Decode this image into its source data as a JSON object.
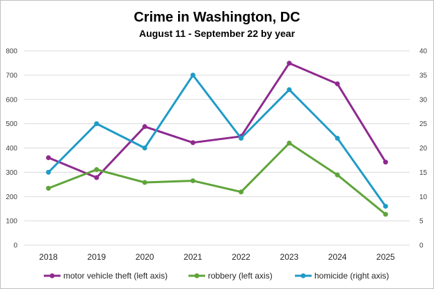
{
  "chart_data": {
    "type": "line",
    "title": "Crime in Washington, DC",
    "subtitle": "August 11 - September 22 by year",
    "categories": [
      "2018",
      "2019",
      "2020",
      "2021",
      "2022",
      "2023",
      "2024",
      "2025"
    ],
    "left_axis": {
      "ylim": [
        0,
        800
      ],
      "ticks": [
        0,
        100,
        200,
        300,
        400,
        500,
        600,
        700,
        800
      ],
      "tick_labels": [
        "0",
        "100",
        "200",
        "300",
        "400",
        "500",
        "600",
        "700",
        "800"
      ]
    },
    "right_axis": {
      "ylim": [
        0,
        40
      ],
      "ticks": [
        0,
        5,
        10,
        15,
        20,
        25,
        30,
        35,
        40
      ],
      "tick_labels": [
        "0",
        "5",
        "10",
        "15",
        "20",
        "25",
        "30",
        "35",
        "40"
      ]
    },
    "grid": true,
    "legend_position": "bottom",
    "series": [
      {
        "name": "motor vehicle theft (left axis)",
        "axis": "left",
        "color": "#8e2a8e",
        "values": [
          360,
          278,
          488,
          422,
          448,
          749,
          664,
          342
        ]
      },
      {
        "name": "robbery (left axis)",
        "axis": "left",
        "color": "#5fa43a",
        "values": [
          234,
          311,
          258,
          265,
          219,
          420,
          289,
          127
        ]
      },
      {
        "name": "homicide (right axis)",
        "axis": "right",
        "color": "#1f9bc7",
        "values": [
          15,
          25,
          20,
          35,
          22,
          32,
          22,
          8
        ]
      }
    ]
  }
}
